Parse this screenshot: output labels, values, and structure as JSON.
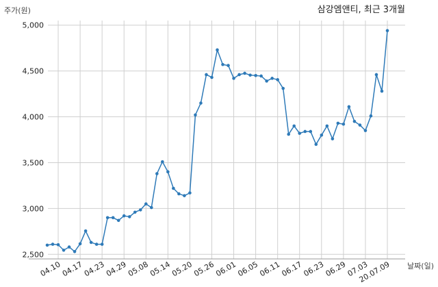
{
  "chart_data": {
    "type": "line",
    "title": "삼강엠앤티, 최근 3개월",
    "ylabel": "주가(원)",
    "xlabel": "날짜(일)",
    "ylim": [
      2450,
      5050
    ],
    "yticks": [
      2500,
      3000,
      3500,
      4000,
      4500,
      5000
    ],
    "ytick_labels": [
      "2,500",
      "3,000",
      "3,500",
      "4,000",
      "4,500",
      "5,000"
    ],
    "grid": true,
    "line_color": "#2e7ab8",
    "x_tick_labels": [
      "04.10",
      "04.17",
      "04.23",
      "04.29",
      "05.08",
      "05.14",
      "05.20",
      "05.26",
      "06.01",
      "06.05",
      "06.11",
      "06.17",
      "06.23",
      "06.29",
      "07.03",
      "20.07.09"
    ],
    "x_tick_indices": [
      2,
      6,
      10,
      14,
      18,
      22,
      26,
      30,
      34,
      38,
      42,
      46,
      50,
      54,
      58,
      62
    ],
    "series": [
      {
        "values": [
          2600,
          2610,
          2605,
          2545,
          2580,
          2530,
          2615,
          2755,
          2630,
          2610,
          2610,
          2900,
          2900,
          2870,
          2920,
          2910,
          2960,
          2985,
          3050,
          3010,
          3380,
          3510,
          3400,
          3220,
          3160,
          3140,
          3170,
          4020,
          4150,
          4460,
          4430,
          4730,
          4570,
          4560,
          4420,
          4460,
          4475,
          4455,
          4450,
          4445,
          4390,
          4420,
          4405,
          4310,
          3810,
          3900,
          3820,
          3840,
          3840,
          3700,
          3800,
          3900,
          3760,
          3930,
          3920,
          4110,
          3950,
          3910,
          3850,
          4010,
          4460,
          4280,
          4940
        ]
      }
    ]
  }
}
